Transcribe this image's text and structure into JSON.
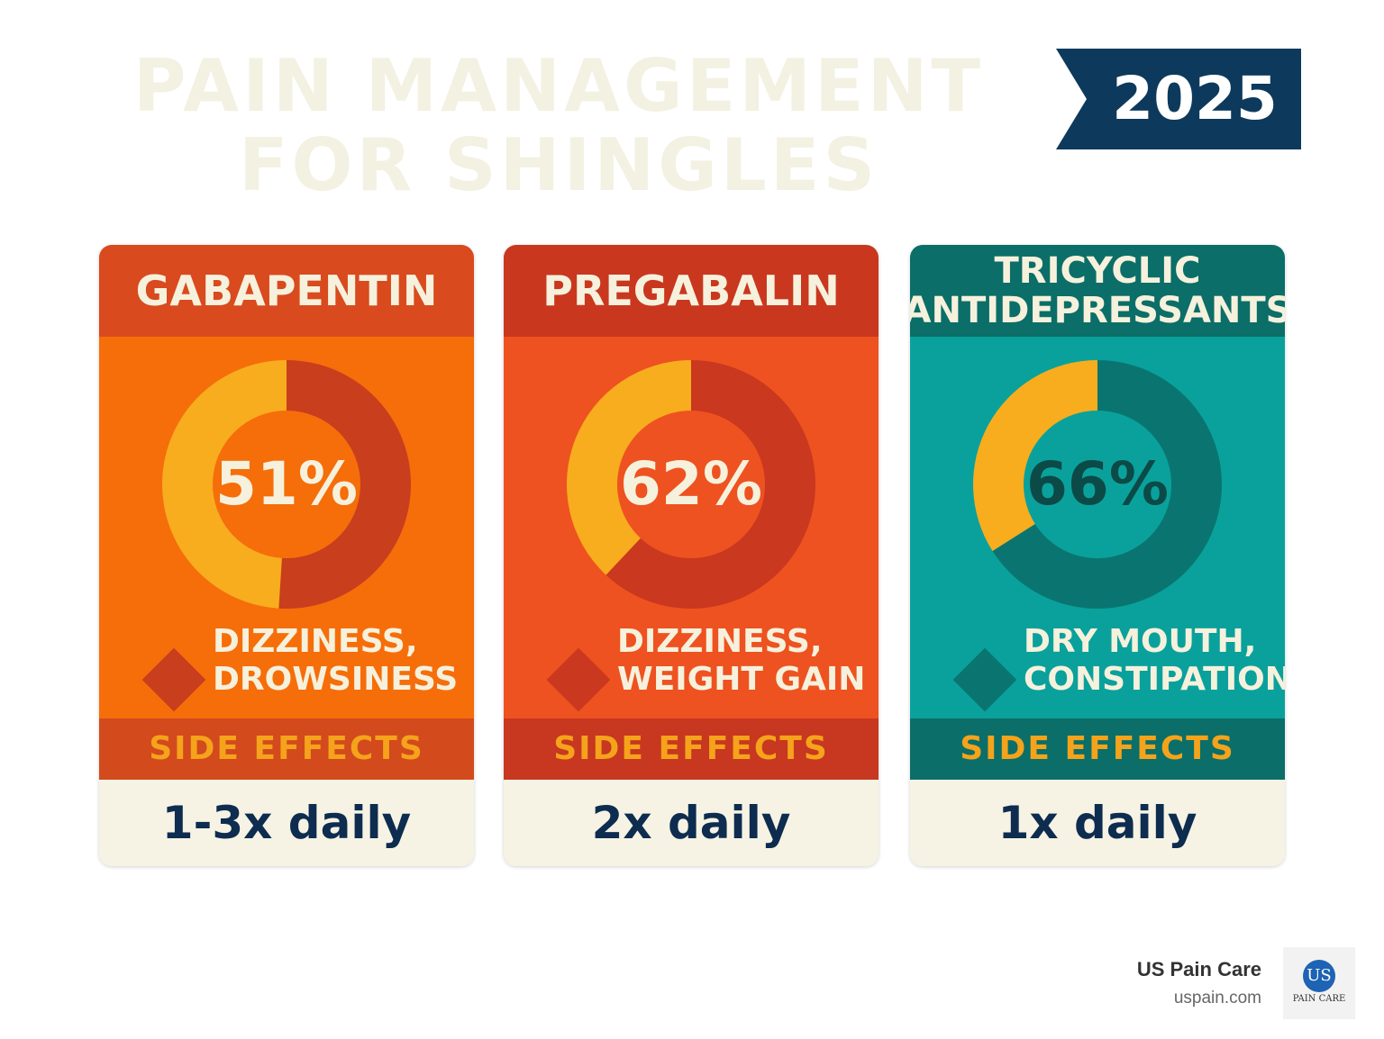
{
  "title": {
    "line1": "PAIN MANAGEMENT",
    "line2": "FOR SHINGLES"
  },
  "year": "2025",
  "chart_data": {
    "type": "pie",
    "series": [
      {
        "name": "GABAPENTIN",
        "value": 51,
        "label": "51%",
        "side_effects": [
          "DIZZINESS,",
          "DROWSINESS"
        ],
        "band": "SIDE EFFECTS",
        "dosage": "1-3x daily"
      },
      {
        "name": "PREGABALIN",
        "value": 62,
        "label": "62%",
        "side_effects": [
          "DIZZINESS,",
          "WEIGHT GAIN"
        ],
        "band": "SIDE EFFECTS",
        "dosage": "2x daily"
      },
      {
        "name_lines": [
          "TRICYCLIC",
          "ANTIDEPRESSANTS"
        ],
        "value": 66,
        "label": "66%",
        "side_effects": [
          "DRY MOUTH,",
          "CONSTIPATION"
        ],
        "band": "SIDE EFFECTS",
        "dosage": "1x daily"
      }
    ]
  },
  "colors": {
    "title": "#f3f1e2",
    "ribbon": "#0d3a5c",
    "card1_head": "#d94a1e",
    "card1_body": "#f56e0a",
    "card1_ring": "#c93e1d",
    "card2_head": "#c9371f",
    "card2_body": "#ee5220",
    "card2_ring": "#c9381f",
    "card3_head": "#0b6e68",
    "card3_body": "#0aa19c",
    "card3_ring": "#0a7570",
    "accent": "#f8ad1e",
    "dosage_text": "#0d2c4f"
  },
  "brand": {
    "name": "US Pain Care",
    "url": "uspain.com",
    "logo_mark": "US",
    "logo_text": "PAIN CARE"
  }
}
